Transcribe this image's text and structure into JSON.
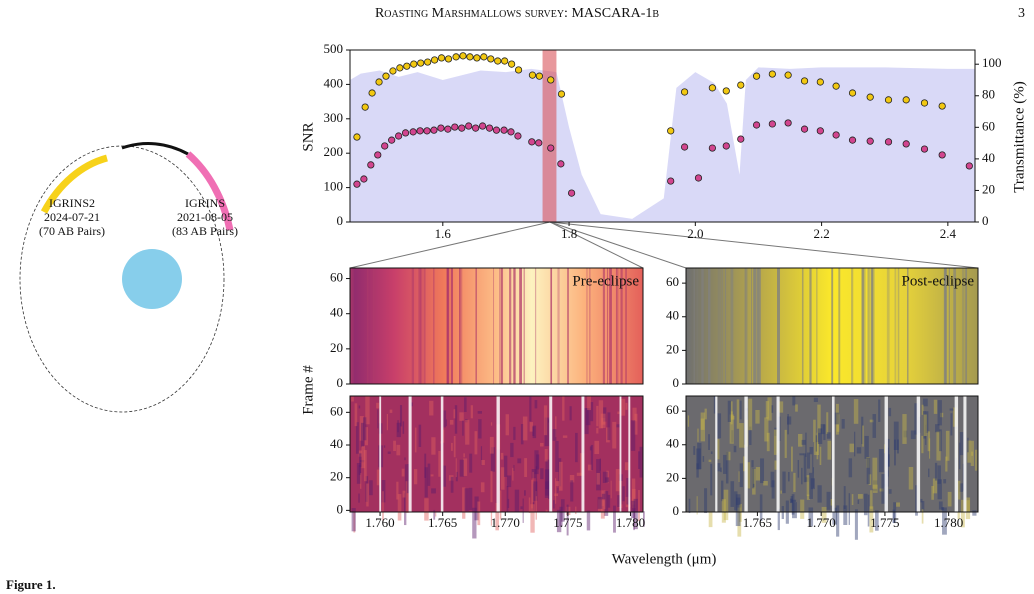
{
  "header": {
    "title": "Roasting Marshmallows survey: MASCARA-1b",
    "page": "3"
  },
  "diagram": {
    "observations": [
      {
        "instrument": "IGRINS2",
        "date": "2024-07-21",
        "pairs": "(70 AB Pairs)"
      },
      {
        "instrument": "IGRINS",
        "date": "2021-08-05",
        "pairs": "(83 AB Pairs)"
      }
    ]
  },
  "caption": "Figure 1.",
  "chart_data": [
    {
      "type": "scatter",
      "ylabel": "SNR",
      "y2label": "Transmittance (%)",
      "xlim": [
        1.453,
        2.443
      ],
      "ylim": [
        0,
        500
      ],
      "y2lim": [
        0,
        109
      ],
      "xticks": [
        1.6,
        1.8,
        {
          "value": 2,
          "label": "2.0"
        },
        2.2,
        2.4
      ],
      "yticks": [
        0,
        100,
        200,
        300,
        400,
        500
      ],
      "y2ticks": [
        0,
        20,
        40,
        60,
        80,
        100
      ],
      "highlight": [
        1.758,
        1.78
      ],
      "series": [
        {
          "color": "#f2c811",
          "x": [
            1.464,
            1.477,
            1.488,
            1.499,
            1.51,
            1.521,
            1.532,
            1.543,
            1.554,
            1.565,
            1.576,
            1.587,
            1.598,
            1.609,
            1.621,
            1.632,
            1.643,
            1.654,
            1.665,
            1.676,
            1.687,
            1.698,
            1.709,
            1.72,
            1.742,
            1.753,
            1.771,
            1.788,
            1.961,
            1.983,
            2.027,
            2.049,
            2.072,
            2.097,
            2.122,
            2.147,
            2.173,
            2.198,
            2.223,
            2.249,
            2.277,
            2.306,
            2.334,
            2.363,
            2.391
          ],
          "values": [
            247,
            334,
            375,
            407,
            424,
            439,
            448,
            453,
            459,
            462,
            465,
            471,
            477,
            474,
            480,
            483,
            480,
            477,
            480,
            474,
            468,
            468,
            459,
            442,
            427,
            424,
            413,
            372,
            265,
            378,
            390,
            381,
            398,
            424,
            430,
            427,
            410,
            407,
            395,
            375,
            363,
            355,
            355,
            346,
            337
          ]
        },
        {
          "color": "#d2458f",
          "x": [
            1.464,
            1.475,
            1.486,
            1.497,
            1.508,
            1.519,
            1.53,
            1.541,
            1.553,
            1.564,
            1.575,
            1.586,
            1.597,
            1.608,
            1.619,
            1.63,
            1.641,
            1.652,
            1.663,
            1.674,
            1.685,
            1.697,
            1.708,
            1.719,
            1.741,
            1.752,
            1.771,
            1.787,
            1.804,
            1.961,
            1.983,
            2.005,
            2.027,
            2.049,
            2.072,
            2.097,
            2.122,
            2.147,
            2.173,
            2.198,
            2.223,
            2.249,
            2.277,
            2.306,
            2.334,
            2.363,
            2.391,
            2.434
          ],
          "values": [
            110,
            125,
            166,
            195,
            221,
            238,
            250,
            259,
            262,
            265,
            265,
            267,
            273,
            270,
            276,
            273,
            279,
            273,
            279,
            273,
            267,
            267,
            262,
            250,
            233,
            230,
            215,
            169,
            84,
            119,
            218,
            128,
            215,
            221,
            241,
            282,
            285,
            288,
            270,
            265,
            253,
            238,
            235,
            233,
            227,
            212,
            195,
            163
          ]
        },
        {
          "axis": "y2",
          "color": "#cfcff5",
          "x": [
            1.453,
            1.47,
            1.5,
            1.53,
            1.56,
            1.6,
            1.63,
            1.66,
            1.7,
            1.74,
            1.78,
            1.8,
            1.82,
            1.85,
            1.9,
            1.95,
            1.97,
            2.0,
            2.03,
            2.05,
            2.07,
            2.08,
            2.1,
            2.15,
            2.2,
            2.3,
            2.4,
            2.443
          ],
          "values": [
            90,
            94,
            96,
            92,
            95,
            90,
            93,
            96,
            95,
            97,
            95,
            60,
            30,
            5,
            2,
            15,
            85,
            95,
            88,
            75,
            30,
            90,
            98,
            97,
            98,
            98,
            97,
            97
          ]
        }
      ]
    },
    {
      "type": "heatmap",
      "label": "Pre-eclipse",
      "ylabel": "Frame #",
      "xlim": [
        1.7576,
        1.781
      ],
      "ylim": [
        0,
        66
      ],
      "yticks": [
        0,
        20,
        40,
        60
      ]
    },
    {
      "type": "heatmap",
      "label": "Post-eclipse",
      "xlim": [
        1.7594,
        1.7823
      ],
      "ylim": [
        0,
        69
      ],
      "yticks": [
        0,
        20,
        40,
        60
      ]
    },
    {
      "type": "heatmap",
      "xlim": [
        1.7576,
        1.781
      ],
      "ylim": [
        -1,
        70
      ],
      "yticks": [
        0,
        20,
        40,
        60
      ],
      "xticks": [
        {
          "value": 1.76,
          "label": "1.760"
        },
        {
          "value": 1.765,
          "label": "1.765"
        },
        {
          "value": 1.77,
          "label": "1.770"
        },
        {
          "value": 1.775,
          "label": "1.775"
        },
        {
          "value": 1.78,
          "label": "1.780"
        }
      ]
    },
    {
      "type": "heatmap",
      "xlabel": "Wavelength (μm)",
      "xlim": [
        1.7594,
        1.7823
      ],
      "ylim": [
        0,
        69
      ],
      "yticks": [
        0,
        20,
        40,
        60
      ],
      "xticks": [
        {
          "value": 1.765,
          "label": "1.765"
        },
        {
          "value": 1.77,
          "label": "1.770"
        },
        {
          "value": 1.775,
          "label": "1.775"
        },
        {
          "value": 1.78,
          "label": "1.780"
        }
      ]
    }
  ]
}
